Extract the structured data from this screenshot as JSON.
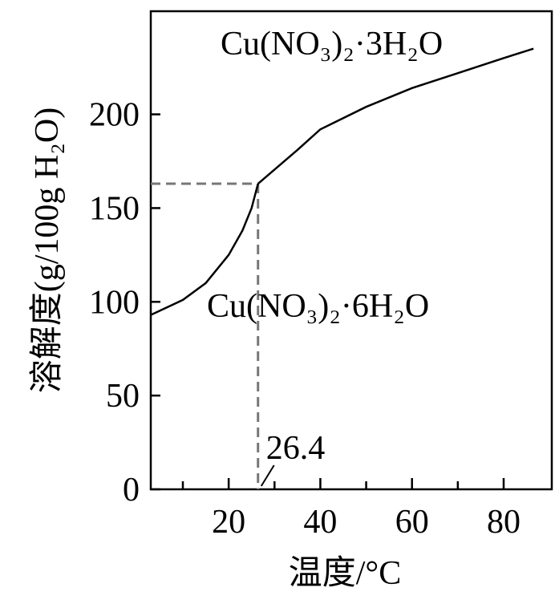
{
  "chart_data": {
    "type": "line",
    "xlabel": "温度/°C",
    "ylabel": "溶解度(g/100g H₂O)",
    "xlim": [
      3,
      90.5
    ],
    "ylim": [
      0,
      255
    ],
    "xticks": [
      20,
      40,
      60,
      80
    ],
    "xminorticks": [
      10,
      30,
      50,
      70
    ],
    "yticks": [
      0,
      50,
      100,
      150,
      200
    ],
    "series": [
      {
        "name": "Cu(NO₃)₂·6H₂O",
        "color": "#000000",
        "x": [
          3,
          10,
          15,
          20,
          23,
          25,
          26.4
        ],
        "values": [
          93,
          101,
          110,
          125,
          138,
          150,
          163
        ]
      },
      {
        "name": "Cu(NO₃)₂·3H₂O",
        "color": "#000000",
        "x": [
          26.4,
          35,
          40,
          50,
          60,
          70,
          80,
          86.5
        ],
        "values": [
          163,
          181,
          192,
          204,
          214,
          222,
          230,
          235
        ]
      }
    ],
    "reference_point": {
      "x": 26.4,
      "y": 163,
      "color": "#777777"
    }
  }
}
